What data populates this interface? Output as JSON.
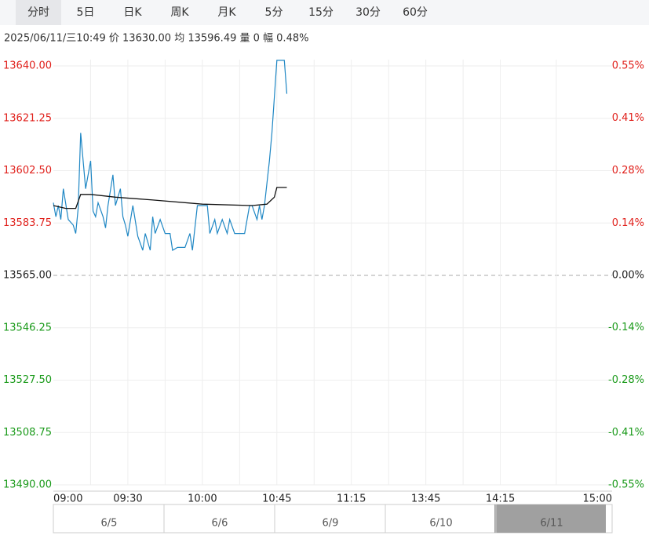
{
  "tabs": [
    "分时",
    "5日",
    "日K",
    "周K",
    "月K",
    "5分",
    "15分",
    "30分",
    "60分"
  ],
  "info": "2025/06/11/三10:49  价 13630.00  均 13596.49  量 0  幅 0.48%",
  "navigator": [
    "6/5",
    "6/6",
    "6/9",
    "6/10",
    "6/11"
  ],
  "chart_data": {
    "type": "line",
    "grid": true,
    "xlim": [
      0,
      225
    ],
    "xticks": [
      {
        "value": 0,
        "label": "09:00"
      },
      {
        "value": 30,
        "label": "09:30"
      },
      {
        "value": 60,
        "label": "10:00"
      },
      {
        "value": 90,
        "label": "10:45"
      },
      {
        "value": 120,
        "label": "11:15"
      },
      {
        "value": 150,
        "label": "13:45"
      },
      {
        "value": 180,
        "label": "14:15"
      },
      {
        "value": 225,
        "label": "15:00"
      }
    ],
    "ylim": [
      13490,
      13640
    ],
    "yticks": [
      {
        "value": 13640,
        "label": "13640.00"
      },
      {
        "value": 13621.25,
        "label": "13621.25"
      },
      {
        "value": 13602.5,
        "label": "13602.50"
      },
      {
        "value": 13583.75,
        "label": "13583.75"
      },
      {
        "value": 13565,
        "label": "13565.00"
      },
      {
        "value": 13546.25,
        "label": "13546.25"
      },
      {
        "value": 13527.5,
        "label": "13527.50"
      },
      {
        "value": 13508.75,
        "label": "13508.75"
      },
      {
        "value": 13490,
        "label": "13490.00"
      }
    ],
    "y2lim": [
      -0.553,
      0.553
    ],
    "y2ticks": [
      {
        "value": 0.553,
        "label": "0.55%"
      },
      {
        "value": 0.415,
        "label": "0.41%"
      },
      {
        "value": 0.276,
        "label": "0.28%"
      },
      {
        "value": 0.138,
        "label": "0.14%"
      },
      {
        "value": 0,
        "label": "0.00%"
      },
      {
        "value": -0.138,
        "label": "-0.14%"
      },
      {
        "value": -0.276,
        "label": "-0.28%"
      },
      {
        "value": -0.415,
        "label": "-0.41%"
      },
      {
        "value": -0.553,
        "label": "-0.55%"
      }
    ],
    "series": [
      {
        "color": "#1f87c4",
        "x": [
          0,
          1,
          2,
          3,
          4,
          6,
          8,
          9,
          10,
          11,
          13,
          15,
          16,
          17,
          18,
          20,
          21,
          22,
          24,
          25,
          27,
          28,
          29,
          30,
          32,
          34,
          36,
          37,
          39,
          40,
          41,
          43,
          45,
          47,
          48,
          50,
          52,
          53,
          55,
          56,
          58,
          59,
          62,
          63,
          65,
          66,
          68,
          70,
          71,
          73,
          75,
          77,
          79,
          80,
          82,
          83,
          84,
          85,
          87,
          88,
          90,
          93,
          94
        ],
        "values": [
          13591,
          13586,
          13590,
          13585,
          13596,
          13585,
          13583,
          13580,
          13589,
          13616,
          13596,
          13606,
          13588,
          13586,
          13591,
          13586,
          13582,
          13590,
          13601,
          13590,
          13596,
          13586,
          13583,
          13579,
          13590,
          13579,
          13574,
          13580,
          13574,
          13586,
          13580,
          13585,
          13580,
          13580,
          13574,
          13575,
          13575,
          13575,
          13580,
          13574,
          13590,
          13590,
          13590,
          13580,
          13585,
          13580,
          13585,
          13580,
          13585,
          13580,
          13580,
          13580,
          13590,
          13590,
          13585,
          13590,
          13585,
          13590,
          13606,
          13616,
          13642,
          13642,
          13630
        ]
      },
      {
        "color": "#111111",
        "x": [
          0,
          5,
          9,
          11,
          15,
          25,
          40,
          60,
          80,
          86,
          89,
          90,
          94
        ],
        "values": [
          13590,
          13589,
          13589,
          13594,
          13594,
          13593,
          13592,
          13590.5,
          13590,
          13590.5,
          13593,
          13596.5,
          13596.49
        ]
      }
    ]
  }
}
